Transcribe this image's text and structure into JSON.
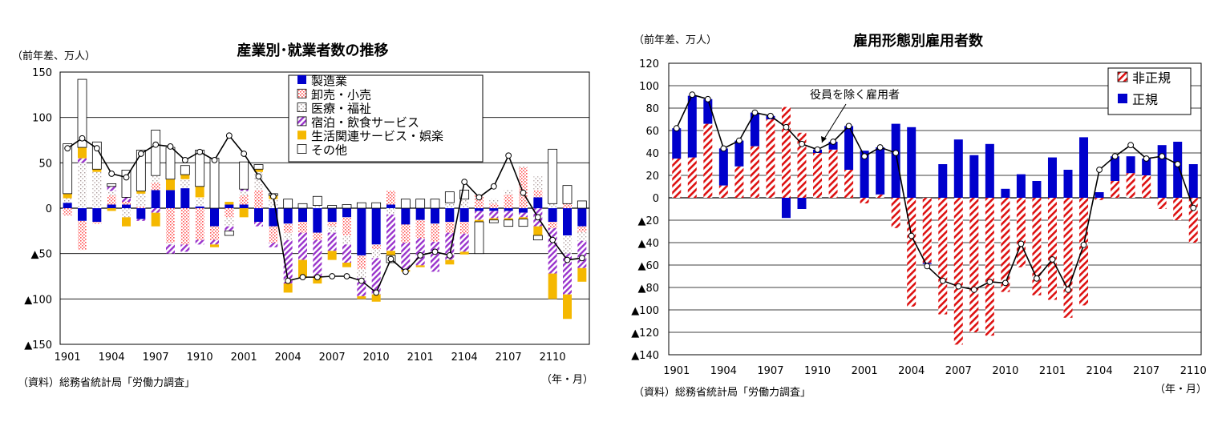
{
  "chart_data": [
    {
      "type": "bar",
      "stacked": true,
      "title": "産業別･就業者数の推移",
      "unit_label": "（前年差、万人）",
      "source": "（資料）総務省統計局「労働力調査」",
      "x_unit_label": "（年・月）",
      "ylim": [
        -150,
        150
      ],
      "yticks": [
        150,
        100,
        50,
        0,
        -50,
        -100,
        -150
      ],
      "ytick_labels": [
        "150",
        "100",
        "50",
        "0",
        "▲50",
        "▲100",
        "▲150"
      ],
      "grid": true,
      "legend_position": "top-center",
      "categories": [
        "1901",
        "1902",
        "1903",
        "1904",
        "1905",
        "1906",
        "1907",
        "1908",
        "1909",
        "1910",
        "1911",
        "1912",
        "2001",
        "2002",
        "2003",
        "2004",
        "2005",
        "2006",
        "2007",
        "2008",
        "2009",
        "2010",
        "2011",
        "2012",
        "2101",
        "2102",
        "2103",
        "2104",
        "2105",
        "2106",
        "2107",
        "2108",
        "2109",
        "2110",
        "2111",
        "2112"
      ],
      "x_tick_labels": [
        "1901",
        "1904",
        "1907",
        "1910",
        "2001",
        "2004",
        "2007",
        "2010",
        "2101",
        "2104",
        "2107",
        "2110"
      ],
      "series": [
        {
          "name": "製造業",
          "color": "#0000cc",
          "pattern": "solid",
          "values": [
            6,
            -14,
            -15,
            4,
            4,
            -12,
            20,
            20,
            22,
            2,
            -20,
            4,
            4,
            -15,
            -20,
            -17,
            -15,
            -27,
            -15,
            -10,
            -52,
            -40,
            4,
            -18,
            -13,
            -17,
            -15,
            -15,
            -3,
            -3,
            -3,
            -5,
            12,
            -15,
            -30,
            -20
          ]
        },
        {
          "name": "卸売・小売",
          "color": "#ff6666",
          "pattern": "dots-red",
          "values": [
            -8,
            -32,
            -2,
            10,
            3,
            2,
            8,
            -38,
            -40,
            -35,
            -15,
            -10,
            10,
            20,
            -18,
            -10,
            -12,
            -8,
            -5,
            -20,
            -15,
            -5,
            15,
            -20,
            -20,
            -20,
            -12,
            -13,
            15,
            5,
            15,
            45,
            8,
            -7,
            5,
            -6
          ]
        },
        {
          "name": "医療・福祉",
          "color": "#888888",
          "pattern": "dots-grey",
          "values": [
            5,
            50,
            40,
            5,
            -10,
            14,
            8,
            -2,
            10,
            10,
            0,
            -10,
            5,
            20,
            10,
            -8,
            0,
            3,
            -7,
            -10,
            -10,
            -10,
            -7,
            0,
            0,
            0,
            6,
            10,
            0,
            5,
            5,
            1,
            15,
            5,
            -20,
            -10
          ]
        },
        {
          "name": "宿泊・飲食サービス",
          "color": "#9933cc",
          "pattern": "hatch-purple",
          "values": [
            0,
            5,
            0,
            5,
            5,
            -2,
            -5,
            -10,
            -8,
            -5,
            -5,
            -5,
            2,
            -5,
            -5,
            -48,
            -30,
            -40,
            -20,
            -20,
            -20,
            -40,
            -40,
            -30,
            -30,
            -33,
            -30,
            -20,
            -10,
            -8,
            -8,
            -5,
            -20,
            -50,
            -45,
            -30
          ]
        },
        {
          "name": "生活関連サービス・娯楽",
          "color": "#f5b800",
          "pattern": "solid",
          "values": [
            5,
            12,
            3,
            -3,
            -10,
            3,
            -15,
            12,
            5,
            12,
            -3,
            3,
            -10,
            3,
            4,
            -10,
            -20,
            -8,
            -10,
            -5,
            -3,
            -8,
            -5,
            -2,
            -2,
            0,
            -5,
            -3,
            -2,
            -2,
            -2,
            -2,
            -10,
            -28,
            -27,
            -15
          ]
        },
        {
          "name": "その他",
          "color": "#ffffff",
          "pattern": "solid",
          "values": [
            55,
            75,
            30,
            3,
            30,
            45,
            50,
            35,
            10,
            40,
            55,
            -5,
            30,
            5,
            2,
            10,
            5,
            10,
            3,
            4,
            6,
            6,
            -8,
            10,
            10,
            10,
            12,
            10,
            -35,
            -3,
            -7,
            -8,
            -5,
            60,
            20,
            8
          ]
        }
      ],
      "total_line": {
        "name": "就業者数",
        "values": [
          66,
          77,
          66,
          38,
          34,
          60,
          70,
          68,
          53,
          62,
          53,
          80,
          60,
          35,
          13,
          -80,
          -76,
          -76,
          -75,
          -75,
          -80,
          -93,
          -56,
          -70,
          -52,
          -48,
          -52,
          29,
          12,
          24,
          58,
          17,
          -10,
          -35,
          -57,
          -55
        ]
      }
    },
    {
      "type": "bar",
      "stacked": true,
      "title": "雇用形態別雇用者数",
      "unit_label": "（前年差、万人）",
      "source": "（資料）総務省統計局「労働力調査」",
      "x_unit_label": "（年・月）",
      "ylim": [
        -140,
        120
      ],
      "yticks": [
        120,
        100,
        80,
        60,
        40,
        20,
        0,
        -20,
        -40,
        -60,
        -80,
        -100,
        -120,
        -140
      ],
      "ytick_labels": [
        "120",
        "100",
        "80",
        "60",
        "40",
        "20",
        "0",
        "▲20",
        "▲40",
        "▲60",
        "▲80",
        "▲100",
        "▲120",
        "▲140"
      ],
      "grid": true,
      "legend_position": "top-right",
      "annotation": "役員を除く雇用者",
      "categories": [
        "1901",
        "1902",
        "1903",
        "1904",
        "1905",
        "1906",
        "1907",
        "1908",
        "1909",
        "1910",
        "1911",
        "1912",
        "2001",
        "2002",
        "2003",
        "2004",
        "2005",
        "2006",
        "2007",
        "2008",
        "2009",
        "2010",
        "2011",
        "2012",
        "2101",
        "2102",
        "2103",
        "2104",
        "2105",
        "2106",
        "2107",
        "2108",
        "2109",
        "2110"
      ],
      "x_tick_labels": [
        "1901",
        "1904",
        "1907",
        "1910",
        "2001",
        "2004",
        "2007",
        "2010",
        "2101",
        "2104",
        "2107",
        "2110"
      ],
      "series": [
        {
          "name": "非正規",
          "color": "#cc0000",
          "pattern": "hatch-red",
          "values": [
            35,
            36,
            66,
            11,
            28,
            46,
            70,
            81,
            58,
            40,
            43,
            25,
            -5,
            3,
            -27,
            -97,
            -58,
            -104,
            -131,
            -120,
            -123,
            -84,
            -62,
            -87,
            -91,
            -107,
            -96,
            -2,
            15,
            22,
            20,
            -10,
            -20,
            -40
          ]
        },
        {
          "name": "正規",
          "color": "#0000cc",
          "pattern": "solid",
          "values": [
            27,
            55,
            22,
            33,
            23,
            30,
            3,
            -18,
            -10,
            3,
            7,
            39,
            42,
            42,
            66,
            63,
            -1,
            30,
            52,
            38,
            48,
            8,
            21,
            15,
            36,
            25,
            54,
            5,
            22,
            15,
            15,
            47,
            50,
            30
          ]
        }
      ],
      "total_line": {
        "name": "役員を除く雇用者",
        "values": [
          62,
          92,
          88,
          44,
          51,
          76,
          73,
          63,
          48,
          43,
          50,
          64,
          37,
          45,
          40,
          -34,
          -61,
          -74,
          -79,
          -82,
          -75,
          -76,
          -41,
          -72,
          -55,
          -82,
          -42,
          25,
          37,
          47,
          35,
          37,
          30,
          -9
        ]
      }
    }
  ]
}
